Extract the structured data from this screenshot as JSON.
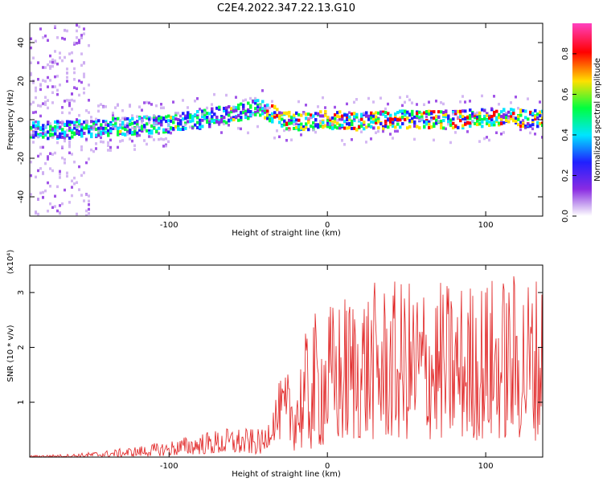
{
  "title": "C2E4.2022.347.22.13.G10",
  "colors": {
    "snr_line": "#e02020",
    "colormap": [
      "#ffffff",
      "#c9a6f0",
      "#8a2be2",
      "#2020ff",
      "#00e5ff",
      "#00ff40",
      "#ffe000",
      "#ff0000",
      "#ff40c0"
    ]
  },
  "chart_data": [
    {
      "type": "heatmap",
      "xlabel": "Height of straight line (km)",
      "ylabel": "Frequency (Hz)",
      "xlim": [
        -188,
        136
      ],
      "ylim": [
        -50,
        50
      ],
      "x_ticks": [
        {
          "value": -100,
          "label": "-100"
        },
        {
          "value": 0,
          "label": "0"
        },
        {
          "value": 100,
          "label": "100"
        }
      ],
      "y_ticks": [
        {
          "value": -40,
          "label": "-40"
        },
        {
          "value": -20,
          "label": "-20"
        },
        {
          "value": 0,
          "label": "0"
        },
        {
          "value": 20,
          "label": "20"
        },
        {
          "value": 40,
          "label": "40"
        }
      ],
      "ridge": {
        "x": [
          -188,
          -160,
          -140,
          -120,
          -100,
          -80,
          -70,
          -60,
          -50,
          -45,
          -40,
          -35,
          -30,
          -20,
          0,
          20,
          40,
          60,
          80,
          100,
          120,
          136
        ],
        "frequency": [
          -6,
          -5,
          -4,
          -3,
          -2,
          0,
          2,
          3,
          5,
          6,
          5,
          3,
          0,
          -1,
          0,
          -1,
          0,
          0,
          0,
          1,
          1,
          0
        ]
      },
      "colorbar": {
        "label": "Normalized spectral amplitude",
        "range": [
          0,
          0.95
        ],
        "ticks": [
          {
            "value": 0.0,
            "label": "0.0"
          },
          {
            "value": 0.2,
            "label": "0.2"
          },
          {
            "value": 0.4,
            "label": "0.4"
          },
          {
            "value": 0.6,
            "label": "0.6"
          },
          {
            "value": 0.8,
            "label": "0.8"
          }
        ]
      }
    },
    {
      "type": "line",
      "xlabel": "Height of straight line (km)",
      "ylabel": "SNR (10 * v/v)",
      "y_scale_label": "(x10⁴)",
      "xlim": [
        -188,
        136
      ],
      "ylim": [
        0,
        3.5
      ],
      "x_ticks": [
        {
          "value": -100,
          "label": "-100"
        },
        {
          "value": 0,
          "label": "0"
        },
        {
          "value": 100,
          "label": "100"
        }
      ],
      "y_ticks": [
        {
          "value": 1,
          "label": "1"
        },
        {
          "value": 2,
          "label": "2"
        },
        {
          "value": 3,
          "label": "3"
        }
      ],
      "envelope": {
        "x": [
          -188,
          -160,
          -140,
          -120,
          -100,
          -80,
          -60,
          -40,
          -35,
          -30,
          -20,
          -10,
          0,
          10,
          20,
          40,
          60,
          80,
          100,
          120,
          136
        ],
        "upper": [
          0.03,
          0.06,
          0.12,
          0.2,
          0.3,
          0.45,
          0.55,
          0.5,
          1.0,
          1.4,
          1.7,
          2.6,
          2.8,
          3.0,
          3.2,
          3.2,
          3.3,
          3.2,
          3.3,
          3.4,
          3.4
        ],
        "lower": [
          0.0,
          0.0,
          0.0,
          0.01,
          0.02,
          0.05,
          0.05,
          0.05,
          0.3,
          0.3,
          0.1,
          0.1,
          0.2,
          0.2,
          0.3,
          0.3,
          0.3,
          0.3,
          0.3,
          0.3,
          0.3
        ]
      }
    }
  ]
}
